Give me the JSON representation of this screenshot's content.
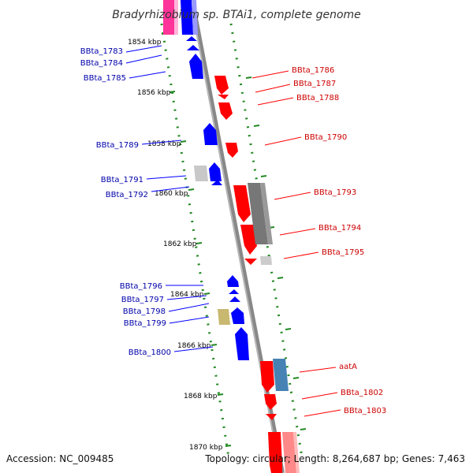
{
  "title": "Bradyrhizobium sp. BTAi1, complete genome",
  "footer": {
    "accession": "Accession: NC_009485",
    "summary": "Topology: circular; Length: 8,264,687 bp; Genes: 7,463"
  },
  "colors": {
    "forward_gene": "#ff0000",
    "reverse_gene": "#0000ff",
    "forward_label": "#cc0000",
    "reverse_label": "#0000aa",
    "backbone": "#888888",
    "dots": "#228822",
    "pink_feature": "#ff3399",
    "gray_feature": "#777777",
    "light_gray_feature": "#cccccc",
    "steelblue_feature": "#4682b4",
    "khaki_feature": "#c8b870",
    "light_red_feature": "#ff8888"
  },
  "ticks": [
    "1854 kbp",
    "1856 kbp",
    "1858 kbp",
    "1860 kbp",
    "1862 kbp",
    "1864 kbp",
    "1866 kbp",
    "1868 kbp",
    "1870 kbp"
  ],
  "genes_reverse": [
    "BBta_1783",
    "BBta_1784",
    "BBta_1785",
    "BBta_1789",
    "BBta_1791",
    "BBta_1792",
    "BBta_1796",
    "BBta_1797",
    "BBta_1798",
    "BBta_1799",
    "BBta_1800"
  ],
  "genes_forward": [
    "BBta_1786",
    "BBta_1787",
    "BBta_1788",
    "BBta_1790",
    "BBta_1793",
    "BBta_1794",
    "BBta_1795",
    "aatA",
    "BBta_1802",
    "BBta_1803"
  ]
}
